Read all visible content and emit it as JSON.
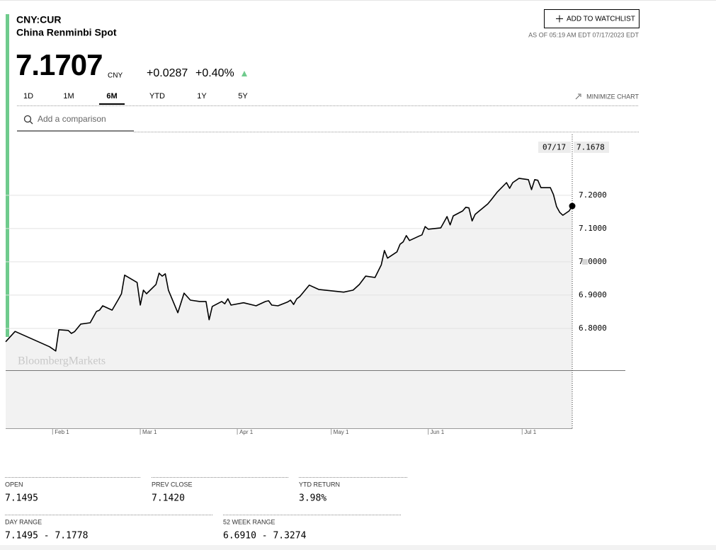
{
  "header": {
    "ticker": "CNY:CUR",
    "name": "China Renminbi Spot",
    "watchlist_button": "ADD TO WATCHLIST",
    "as_of": "AS OF 05:19 AM EDT 07/17/2023 EDT"
  },
  "quote": {
    "price": "7.1707",
    "currency": "CNY",
    "change": "+0.0287",
    "change_percent": "+0.40%"
  },
  "tabs": [
    "1D",
    "1M",
    "6M",
    "YTD",
    "1Y",
    "5Y"
  ],
  "active_tab": "6M",
  "minimize": "MINIMIZE CHART",
  "comparison_placeholder": "Add a comparison",
  "chart_data": {
    "type": "line",
    "color": "#000000",
    "watermark": "BloombergMarkets",
    "x": [
      "2023-01-17",
      "2023-01-20",
      "2023-01-31",
      "2023-02-02",
      "2023-02-03",
      "2023-02-06",
      "2023-02-07",
      "2023-02-08",
      "2023-02-10",
      "2023-02-13",
      "2023-02-15",
      "2023-02-16",
      "2023-02-17",
      "2023-02-20",
      "2023-02-22",
      "2023-02-23",
      "2023-02-24",
      "2023-02-28",
      "2023-03-01",
      "2023-03-02",
      "2023-03-03",
      "2023-03-06",
      "2023-03-07",
      "2023-03-08",
      "2023-03-09",
      "2023-03-10",
      "2023-03-13",
      "2023-03-15",
      "2023-03-17",
      "2023-03-20",
      "2023-03-22",
      "2023-03-23",
      "2023-03-24",
      "2023-03-27",
      "2023-03-28",
      "2023-03-29",
      "2023-03-30",
      "2023-04-03",
      "2023-04-07",
      "2023-04-10",
      "2023-04-11",
      "2023-04-12",
      "2023-04-14",
      "2023-04-17",
      "2023-04-18",
      "2023-04-19",
      "2023-04-20",
      "2023-04-21",
      "2023-04-24",
      "2023-04-27",
      "2023-05-05",
      "2023-05-08",
      "2023-05-10",
      "2023-05-12",
      "2023-05-15",
      "2023-05-17",
      "2023-05-18",
      "2023-05-19",
      "2023-05-22",
      "2023-05-23",
      "2023-05-24",
      "2023-05-25",
      "2023-05-26",
      "2023-05-29",
      "2023-05-30",
      "2023-05-31",
      "2023-06-01",
      "2023-06-05",
      "2023-06-06",
      "2023-06-07",
      "2023-06-08",
      "2023-06-09",
      "2023-06-12",
      "2023-06-13",
      "2023-06-14",
      "2023-06-15",
      "2023-06-16",
      "2023-06-20",
      "2023-06-21",
      "2023-06-23",
      "2023-06-26",
      "2023-06-27",
      "2023-06-28",
      "2023-06-30",
      "2023-07-03",
      "2023-07-04",
      "2023-07-05",
      "2023-07-06",
      "2023-07-07",
      "2023-07-10",
      "2023-07-11",
      "2023-07-12",
      "2023-07-13",
      "2023-07-14",
      "2023-07-16",
      "2023-07-17"
    ],
    "values": [
      6.76,
      6.791,
      6.745,
      6.732,
      6.796,
      6.794,
      6.785,
      6.79,
      6.813,
      6.817,
      6.851,
      6.855,
      6.868,
      6.855,
      6.887,
      6.904,
      6.96,
      6.938,
      6.87,
      6.915,
      6.904,
      6.932,
      6.966,
      6.957,
      6.964,
      6.915,
      6.847,
      6.906,
      6.885,
      6.881,
      6.881,
      6.826,
      6.866,
      6.881,
      6.874,
      6.889,
      6.87,
      6.877,
      6.868,
      6.881,
      6.883,
      6.87,
      6.868,
      6.879,
      6.885,
      6.872,
      6.889,
      6.896,
      6.93,
      6.917,
      6.909,
      6.915,
      6.932,
      6.957,
      6.953,
      6.991,
      7.034,
      7.011,
      7.03,
      7.053,
      7.06,
      7.079,
      7.064,
      7.077,
      7.081,
      7.106,
      7.098,
      7.102,
      7.119,
      7.136,
      7.111,
      7.138,
      7.153,
      7.164,
      7.162,
      7.123,
      7.143,
      7.174,
      7.185,
      7.209,
      7.238,
      7.221,
      7.238,
      7.251,
      7.247,
      7.217,
      7.247,
      7.245,
      7.223,
      7.223,
      7.202,
      7.166,
      7.149,
      7.14,
      7.153,
      7.1678
    ],
    "xlim": [
      "2023-01-17",
      "2023-07-17"
    ],
    "xticks": [
      {
        "value": "2023-02-01",
        "label": "Feb 1"
      },
      {
        "value": "2023-03-01",
        "label": "Mar 1"
      },
      {
        "value": "2023-04-01",
        "label": "Apr 1"
      },
      {
        "value": "2023-05-01",
        "label": "May 1"
      },
      {
        "value": "2023-06-01",
        "label": "Jun 1"
      },
      {
        "value": "2023-07-01",
        "label": "Jul 1"
      }
    ],
    "ylim": [
      6.5,
      7.372
    ],
    "yticks": [
      {
        "value": 6.8,
        "label": "6.8000"
      },
      {
        "value": 6.9,
        "label": "6.9000"
      },
      {
        "value": 7.0,
        "label": "7.0000"
      },
      {
        "value": 7.1,
        "label": "7.1000"
      },
      {
        "value": 7.2,
        "label": "7.2000"
      }
    ],
    "grid": true,
    "cursor": {
      "date_label": "07/17",
      "value": "7.1678"
    }
  },
  "stats": [
    {
      "label": "OPEN",
      "value": "7.1495"
    },
    {
      "label": "PREV CLOSE",
      "value": "7.1420"
    },
    {
      "label": "YTD RETURN",
      "value": "3.98%"
    },
    {
      "label": "DAY RANGE",
      "value": "7.1495 - 7.1778"
    },
    {
      "label": "52 WEEK RANGE",
      "value": "6.6910 - 7.3274"
    }
  ]
}
